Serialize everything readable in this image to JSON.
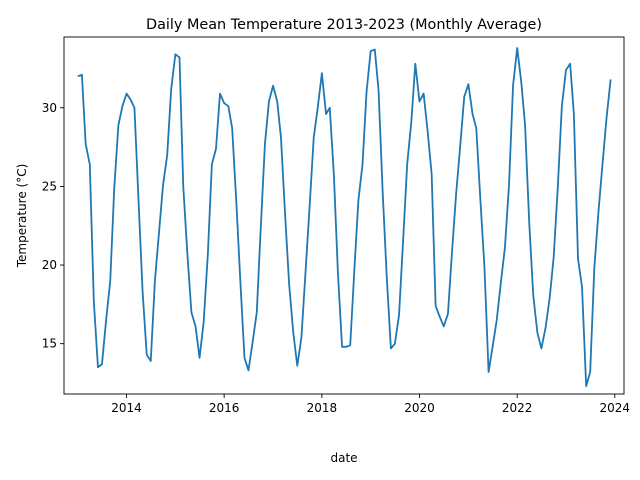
{
  "chart_data": {
    "type": "line",
    "title": "Daily Mean Temperature 2013-2023 (Monthly Average)",
    "xlabel": "date",
    "ylabel": "Temperature (°C)",
    "xlim": [
      "2012-09-20",
      "2024-03-10"
    ],
    "ylim": [
      11.8,
      34.5
    ],
    "x_ticks": [
      "2014",
      "2016",
      "2018",
      "2020",
      "2022",
      "2024"
    ],
    "y_ticks": [
      15,
      20,
      25,
      30
    ],
    "grid": false,
    "legend": "none",
    "line_color": "#1f77b4",
    "series": [
      {
        "x": [
          "2013-01-01",
          "2013-02-01",
          "2013-03-01",
          "2013-04-01",
          "2013-05-01",
          "2013-06-01",
          "2013-07-01",
          "2013-08-01",
          "2013-09-01",
          "2013-10-01",
          "2013-11-01",
          "2013-12-01",
          "2014-01-01",
          "2014-02-01",
          "2014-03-01",
          "2014-04-01",
          "2014-05-01",
          "2014-06-01",
          "2014-07-01",
          "2014-08-01",
          "2014-09-01",
          "2014-10-01",
          "2014-11-01",
          "2014-12-01",
          "2015-01-01",
          "2015-02-01",
          "2015-03-01",
          "2015-04-01",
          "2015-05-01",
          "2015-06-01",
          "2015-07-01",
          "2015-08-01",
          "2015-09-01",
          "2015-10-01",
          "2015-11-01",
          "2015-12-01",
          "2016-01-01",
          "2016-02-01",
          "2016-03-01",
          "2016-04-01",
          "2016-05-01",
          "2016-06-01",
          "2016-07-01",
          "2016-08-01",
          "2016-09-01",
          "2016-10-01",
          "2016-11-01",
          "2016-12-01",
          "2017-01-01",
          "2017-02-01",
          "2017-03-01",
          "2017-04-01",
          "2017-05-01",
          "2017-06-01",
          "2017-07-01",
          "2017-08-01",
          "2017-09-01",
          "2017-10-01",
          "2017-11-01",
          "2017-12-01",
          "2018-01-01",
          "2018-02-01",
          "2018-03-01",
          "2018-04-01",
          "2018-05-01",
          "2018-06-01",
          "2018-07-01",
          "2018-08-01",
          "2018-09-01",
          "2018-10-01",
          "2018-11-01",
          "2018-12-01",
          "2019-01-01",
          "2019-02-01",
          "2019-03-01",
          "2019-04-01",
          "2019-05-01",
          "2019-06-01",
          "2019-07-01",
          "2019-08-01",
          "2019-09-01",
          "2019-10-01",
          "2019-11-01",
          "2019-12-01",
          "2020-01-01",
          "2020-02-01",
          "2020-03-01",
          "2020-04-01",
          "2020-05-01",
          "2020-06-01",
          "2020-07-01",
          "2020-08-01",
          "2020-09-01",
          "2020-10-01",
          "2020-11-01",
          "2020-12-01",
          "2021-01-01",
          "2021-02-01",
          "2021-03-01",
          "2021-04-01",
          "2021-05-01",
          "2021-06-01",
          "2021-07-01",
          "2021-08-01",
          "2021-09-01",
          "2021-10-01",
          "2021-11-01",
          "2021-12-01",
          "2022-01-01",
          "2022-02-01",
          "2022-03-01",
          "2022-04-01",
          "2022-05-01",
          "2022-06-01",
          "2022-07-01",
          "2022-08-01",
          "2022-09-01",
          "2022-10-01",
          "2022-11-01",
          "2022-12-01",
          "2023-01-01",
          "2023-02-01",
          "2023-03-01",
          "2023-04-01",
          "2023-05-01",
          "2023-06-01",
          "2023-07-01",
          "2023-08-01",
          "2023-09-01",
          "2023-10-01",
          "2023-11-01",
          "2023-12-01"
        ],
        "values": [
          32.0,
          32.1,
          27.7,
          26.4,
          17.7,
          13.5,
          13.7,
          16.5,
          19.0,
          24.9,
          28.9,
          30.1,
          30.9,
          30.5,
          30.0,
          24.0,
          18.3,
          14.3,
          13.9,
          19.0,
          22.1,
          25.1,
          27.0,
          31.2,
          33.4,
          33.2,
          25.0,
          20.7,
          17.0,
          16.1,
          14.1,
          16.4,
          20.7,
          26.4,
          27.4,
          30.9,
          30.3,
          30.1,
          28.7,
          24.0,
          19.0,
          14.1,
          13.3,
          15.1,
          17.0,
          22.4,
          27.7,
          30.4,
          31.4,
          30.4,
          28.1,
          23.2,
          18.8,
          15.7,
          13.6,
          15.4,
          19.6,
          23.7,
          28.1,
          30.0,
          32.2,
          29.6,
          30.0,
          25.7,
          19.5,
          14.8,
          14.8,
          14.9,
          19.7,
          24.1,
          26.4,
          31.0,
          33.6,
          33.7,
          31.1,
          24.6,
          19.3,
          14.7,
          15.0,
          16.8,
          21.6,
          26.4,
          29.1,
          32.8,
          30.4,
          30.9,
          28.6,
          25.8,
          17.4,
          16.7,
          16.1,
          16.9,
          20.9,
          24.5,
          27.6,
          30.7,
          31.5,
          29.6,
          28.7,
          24.1,
          19.9,
          13.2,
          14.8,
          16.5,
          18.9,
          21.1,
          25.1,
          31.4,
          33.8,
          31.6,
          28.9,
          22.7,
          18.1,
          15.7,
          14.7,
          16.0,
          17.9,
          20.5,
          25.0,
          30.1,
          32.4,
          32.8,
          29.6,
          20.4,
          18.6,
          12.3,
          13.2,
          19.8,
          23.4,
          26.4,
          29.4,
          31.8
        ]
      }
    ]
  }
}
